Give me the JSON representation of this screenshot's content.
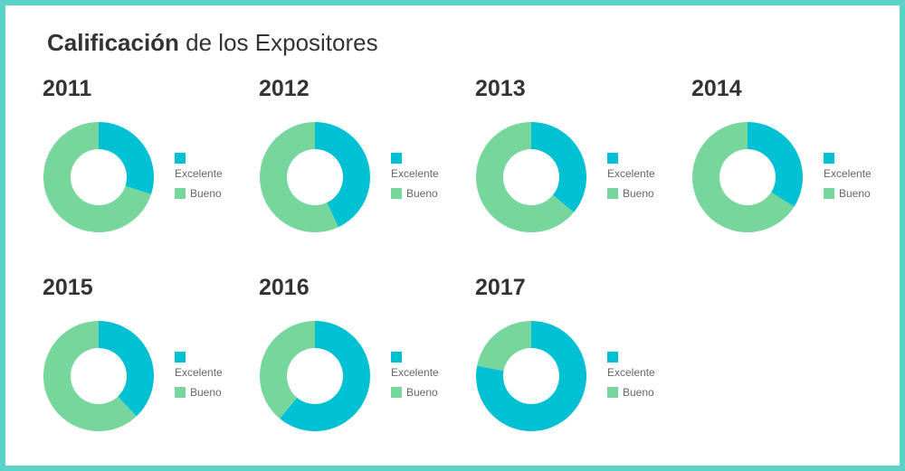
{
  "header": {
    "title_bold": "Calificación",
    "title_rest": " de los Expositores"
  },
  "colors": {
    "excelente": "#00c1d3",
    "bueno": "#76d69c",
    "border": "#5cd3c9"
  },
  "legend": {
    "excelente": "Excelente",
    "bueno": "Bueno"
  },
  "chart_data": [
    {
      "type": "pie",
      "title": "2011",
      "categories": [
        "Excelente",
        "Bueno"
      ],
      "values": [
        30,
        70
      ]
    },
    {
      "type": "pie",
      "title": "2012",
      "categories": [
        "Excelente",
        "Bueno"
      ],
      "values": [
        43,
        57
      ]
    },
    {
      "type": "pie",
      "title": "2013",
      "categories": [
        "Excelente",
        "Bueno"
      ],
      "values": [
        36,
        64
      ]
    },
    {
      "type": "pie",
      "title": "2014",
      "categories": [
        "Excelente",
        "Bueno"
      ],
      "values": [
        34,
        66
      ]
    },
    {
      "type": "pie",
      "title": "2015",
      "categories": [
        "Excelente",
        "Bueno"
      ],
      "values": [
        38,
        62
      ]
    },
    {
      "type": "pie",
      "title": "2016",
      "categories": [
        "Excelente",
        "Bueno"
      ],
      "values": [
        61,
        39
      ]
    },
    {
      "type": "pie",
      "title": "2017",
      "categories": [
        "Excelente",
        "Bueno"
      ],
      "values": [
        78,
        22
      ]
    }
  ]
}
